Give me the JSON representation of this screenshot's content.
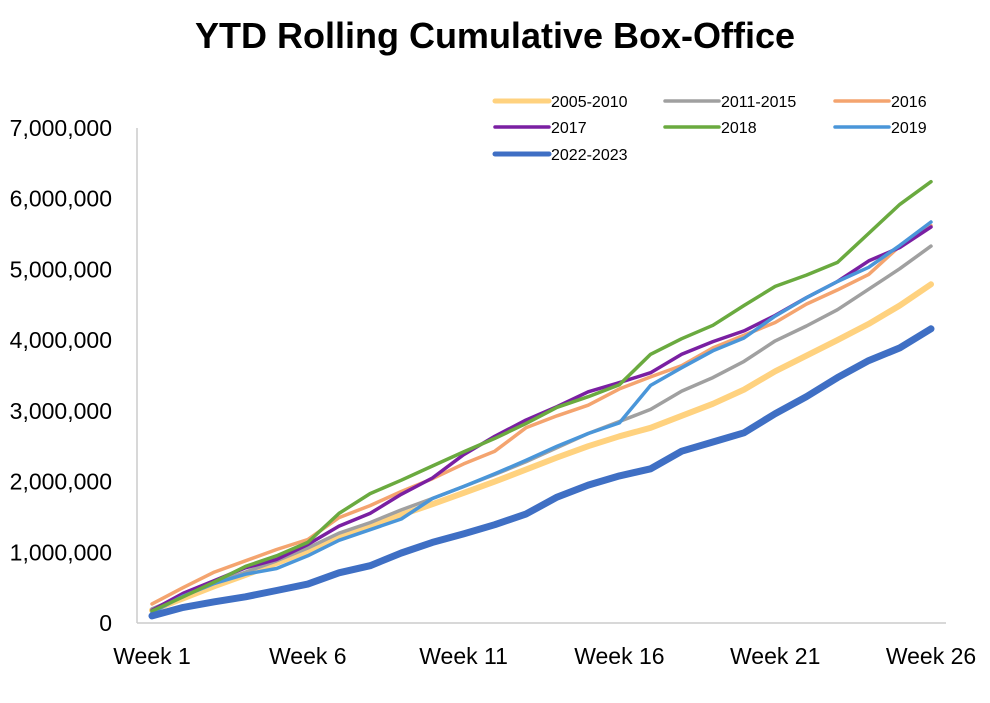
{
  "chart_data": {
    "type": "line",
    "title": "YTD Rolling Cumulative Box-Office",
    "xlabel": "",
    "ylabel": "",
    "ylim": [
      0,
      7000000
    ],
    "grid": false,
    "legend_position": "top",
    "y_ticks": [
      {
        "value": 0,
        "label": "0"
      },
      {
        "value": 1000000,
        "label": "1,000,000"
      },
      {
        "value": 2000000,
        "label": "2,000,000"
      },
      {
        "value": 3000000,
        "label": "3,000,000"
      },
      {
        "value": 4000000,
        "label": "4,000,000"
      },
      {
        "value": 5000000,
        "label": "5,000,000"
      },
      {
        "value": 6000000,
        "label": "6,000,000"
      },
      {
        "value": 7000000,
        "label": "7,000,000"
      }
    ],
    "x_ticks": [
      {
        "week": 1,
        "label": "Week 1"
      },
      {
        "week": 6,
        "label": "Week 6"
      },
      {
        "week": 11,
        "label": "Week 11"
      },
      {
        "week": 16,
        "label": "Week 16"
      },
      {
        "week": 21,
        "label": "Week 21"
      },
      {
        "week": 26,
        "label": "Week 26"
      }
    ],
    "x": [
      1,
      2,
      3,
      4,
      5,
      6,
      7,
      8,
      9,
      10,
      11,
      12,
      13,
      14,
      15,
      16,
      17,
      18,
      19,
      20,
      21,
      22,
      23,
      24,
      25,
      26
    ],
    "series": [
      {
        "name": "2005-2010",
        "color": "#ffd27f",
        "width": 6,
        "values": [
          180000,
          350000,
          520000,
          680000,
          850000,
          1020000,
          1200000,
          1370000,
          1530000,
          1680000,
          1840000,
          2000000,
          2170000,
          2340000,
          2500000,
          2640000,
          2760000,
          2930000,
          3100000,
          3300000,
          3560000,
          3780000,
          4000000,
          4230000,
          4490000,
          4790000
        ]
      },
      {
        "name": "2011-2015",
        "color": "#a0a0a0",
        "width": 3.5,
        "values": [
          200000,
          380000,
          560000,
          720000,
          880000,
          1060000,
          1270000,
          1420000,
          1600000,
          1760000,
          1930000,
          2100000,
          2280000,
          2480000,
          2680000,
          2850000,
          3020000,
          3280000,
          3470000,
          3700000,
          3990000,
          4200000,
          4430000,
          4720000,
          5010000,
          5330000
        ]
      },
      {
        "name": "2016",
        "color": "#f4a46f",
        "width": 3.5,
        "values": [
          270000,
          500000,
          720000,
          880000,
          1040000,
          1180000,
          1490000,
          1660000,
          1860000,
          2040000,
          2250000,
          2430000,
          2760000,
          2930000,
          3080000,
          3310000,
          3480000,
          3640000,
          3890000,
          4070000,
          4250000,
          4510000,
          4710000,
          4930000,
          5330000,
          5620000
        ]
      },
      {
        "name": "2017",
        "color": "#7a1fa2",
        "width": 3.5,
        "values": [
          180000,
          420000,
          600000,
          780000,
          900000,
          1110000,
          1370000,
          1550000,
          1820000,
          2050000,
          2380000,
          2640000,
          2870000,
          3060000,
          3270000,
          3400000,
          3540000,
          3800000,
          3980000,
          4130000,
          4350000,
          4600000,
          4830000,
          5120000,
          5310000,
          5600000
        ]
      },
      {
        "name": "2018",
        "color": "#6aaa3f",
        "width": 3.5,
        "values": [
          170000,
          370000,
          580000,
          800000,
          950000,
          1140000,
          1550000,
          1830000,
          2020000,
          2220000,
          2420000,
          2610000,
          2820000,
          3050000,
          3200000,
          3370000,
          3800000,
          4020000,
          4210000,
          4490000,
          4760000,
          4920000,
          5100000,
          5510000,
          5920000,
          6240000
        ]
      },
      {
        "name": "2019",
        "color": "#4a96d9",
        "width": 3.5,
        "values": [
          150000,
          380000,
          560000,
          690000,
          770000,
          950000,
          1170000,
          1320000,
          1470000,
          1760000,
          1930000,
          2110000,
          2300000,
          2500000,
          2680000,
          2830000,
          3360000,
          3610000,
          3850000,
          4030000,
          4340000,
          4600000,
          4830000,
          5030000,
          5340000,
          5670000
        ]
      },
      {
        "name": "2022-2023",
        "color": "#3f6fc4",
        "width": 7,
        "values": [
          100000,
          220000,
          300000,
          370000,
          460000,
          550000,
          710000,
          810000,
          990000,
          1140000,
          1260000,
          1390000,
          1540000,
          1780000,
          1950000,
          2080000,
          2180000,
          2430000,
          2560000,
          2690000,
          2960000,
          3200000,
          3470000,
          3710000,
          3890000,
          4160000
        ]
      }
    ]
  }
}
